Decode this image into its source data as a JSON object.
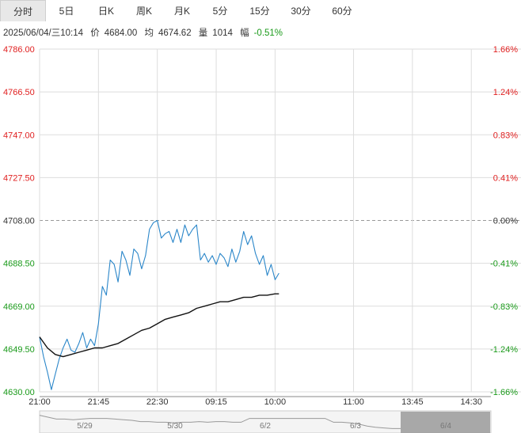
{
  "tabs": [
    {
      "label": "分时",
      "active": true
    },
    {
      "label": "5日",
      "active": false
    },
    {
      "label": "日K",
      "active": false
    },
    {
      "label": "周K",
      "active": false
    },
    {
      "label": "月K",
      "active": false
    },
    {
      "label": "5分",
      "active": false
    },
    {
      "label": "15分",
      "active": false
    },
    {
      "label": "30分",
      "active": false
    },
    {
      "label": "60分",
      "active": false
    }
  ],
  "info": {
    "datetime": "2025/06/04/三10:14",
    "price_label": "价",
    "price": "4684.00",
    "avg_label": "均",
    "avg": "4674.62",
    "vol_label": "量",
    "vol": "1014",
    "chg_label": "幅",
    "chg": "-0.51%"
  },
  "colors": {
    "up": "#e02020",
    "down": "#1a9a1a",
    "neutral": "#333333",
    "price_line": "#2a86c9",
    "avg_line": "#111111",
    "grid": "#dddddd",
    "ref_line": "#999999"
  },
  "chart_data": {
    "type": "line",
    "title": "",
    "xlabel": "",
    "ylabel": "",
    "ylim": [
      4630.0,
      4786.0
    ],
    "reference_price": 4708.0,
    "y_ticks": [
      "4786.00",
      "4766.50",
      "4747.00",
      "4727.50",
      "4708.00",
      "4688.50",
      "4669.00",
      "4649.50",
      "4630.00"
    ],
    "pct_ticks": [
      "1.66%",
      "1.24%",
      "0.83%",
      "0.41%",
      "0.00%",
      "-0.41%",
      "-0.83%",
      "-1.24%",
      "-1.66%"
    ],
    "x_ticks": [
      "21:00",
      "21:45",
      "22:30",
      "09:15",
      "10:00",
      "11:00",
      "13:45",
      "14:30"
    ],
    "x_tick_index": [
      0,
      45,
      90,
      135,
      180,
      240,
      285,
      330
    ],
    "total_minutes": 345,
    "series": [
      {
        "name": "",
        "type": "price",
        "x": [
          0,
          3,
          6,
          9,
          12,
          15,
          18,
          21,
          24,
          27,
          30,
          33,
          36,
          39,
          42,
          45,
          48,
          51,
          54,
          57,
          60,
          63,
          66,
          69,
          72,
          75,
          78,
          81,
          84,
          87,
          90,
          93,
          96,
          99,
          102,
          105,
          108,
          111,
          114,
          117,
          120,
          123,
          126,
          129,
          132,
          135,
          138,
          141,
          144,
          147,
          150,
          153,
          156,
          159,
          162,
          165,
          168,
          171,
          174,
          177,
          180,
          183
        ],
        "values": [
          4655,
          4646,
          4639,
          4631,
          4638,
          4645,
          4650,
          4654,
          4649,
          4648,
          4652,
          4657,
          4650,
          4654,
          4651,
          4661,
          4678,
          4674,
          4690,
          4688,
          4680,
          4694,
          4690,
          4683,
          4695,
          4693,
          4686,
          4692,
          4704,
          4707,
          4708,
          4700,
          4702,
          4703,
          4698,
          4704,
          4698,
          4706,
          4701,
          4704,
          4706,
          4690,
          4693,
          4689,
          4692,
          4688,
          4693,
          4691,
          4687,
          4695,
          4689,
          4694,
          4703,
          4697,
          4701,
          4693,
          4688,
          4692,
          4683,
          4688,
          4681,
          4684
        ]
      },
      {
        "name": "",
        "type": "average",
        "x": [
          0,
          6,
          12,
          18,
          24,
          30,
          36,
          42,
          48,
          54,
          60,
          66,
          72,
          78,
          84,
          90,
          96,
          102,
          108,
          114,
          120,
          126,
          132,
          138,
          144,
          150,
          156,
          162,
          168,
          174,
          180,
          183
        ],
        "values": [
          4655,
          4650,
          4647,
          4646,
          4647,
          4648,
          4649,
          4650,
          4650,
          4651,
          4652,
          4654,
          4656,
          4658,
          4659,
          4661,
          4663,
          4664,
          4665,
          4666,
          4668,
          4669,
          4670,
          4671,
          4671,
          4672,
          4673,
          4673,
          4674,
          4674,
          4674.6,
          4674.6
        ]
      }
    ],
    "navigator_labels": [
      "5/29",
      "5/30",
      "6/2",
      "6/3",
      "6/4"
    ],
    "navigator_values": [
      4651,
      4648,
      4645,
      4645,
      4644,
      4645,
      4646,
      4646,
      4646,
      4645,
      4644,
      4643,
      4641,
      4641,
      4640,
      4640,
      4639,
      4640,
      4640,
      4641,
      4640,
      4641,
      4641,
      4640,
      4640,
      4646,
      4646,
      4646,
      4646,
      4646,
      4646,
      4646,
      4646,
      4646,
      4646,
      4640,
      4640,
      4639,
      4637,
      4634,
      4632,
      4631,
      4630,
      4630
    ]
  }
}
